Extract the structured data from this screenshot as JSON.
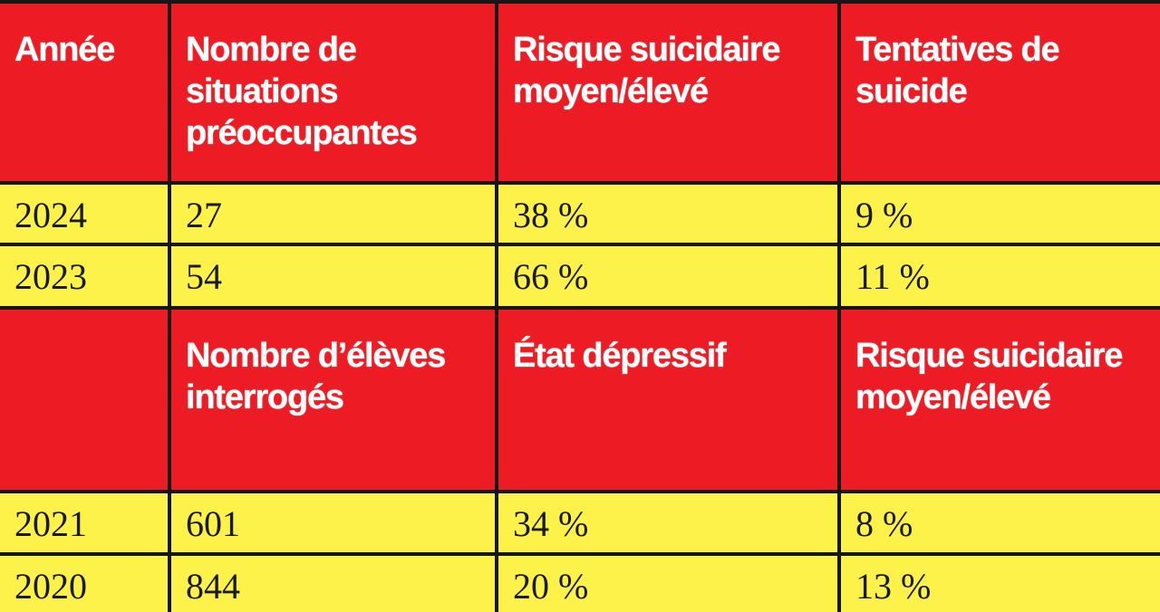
{
  "colors": {
    "header": "#ed1c24",
    "cell": "#fdf24a",
    "border": "#161616"
  },
  "table1": {
    "headers": [
      "Année",
      "Nombre de situations préoccupantes",
      "Risque suicidaire moyen/élevé",
      "Tentatives de suicide"
    ],
    "rows": [
      [
        "2024",
        "27",
        "38 %",
        "9 %"
      ],
      [
        "2023",
        "54",
        "66 %",
        "11 %"
      ]
    ]
  },
  "table2": {
    "headers": [
      "",
      "Nombre d’élèves interrogés",
      "État dépressif",
      "Risque suicidaire moyen/élevé"
    ],
    "rows": [
      [
        "2021",
        "601",
        "34 %",
        "8 %"
      ],
      [
        "2020",
        "844",
        "20 %",
        "13 %"
      ]
    ]
  }
}
